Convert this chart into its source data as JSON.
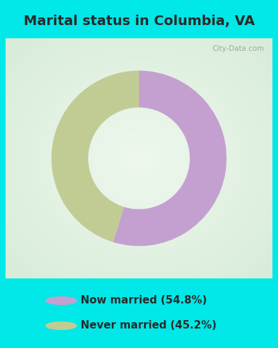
{
  "title": "Marital status in Columbia, VA",
  "slices": [
    54.8,
    45.2
  ],
  "colors": [
    "#c4a0d0",
    "#c0cc94"
  ],
  "labels": [
    "Now married (54.8%)",
    "Never married (45.2%)"
  ],
  "legend_colors": [
    "#c4a0d0",
    "#c0cc94"
  ],
  "background_cyan": "#00e8e8",
  "chart_bg_center": "#e8f5e8",
  "chart_bg_edge": "#d8f0d0",
  "title_fontsize": 14,
  "watermark": "City-Data.com",
  "donut_width": 0.42,
  "start_angle": 90,
  "title_color": "#2a2a2a",
  "legend_text_color": "#2a2a2a",
  "legend_fontsize": 11
}
